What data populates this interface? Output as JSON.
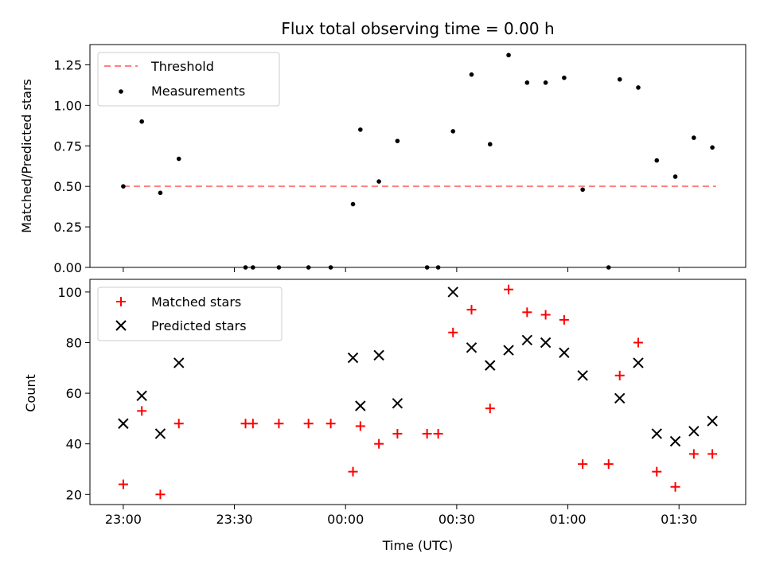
{
  "chart_data": [
    {
      "type": "scatter",
      "title": "Flux total observing time = 0.00 h",
      "xlabel": "",
      "ylabel": "Matched/Predicted stars",
      "ylim": [
        0,
        1.375
      ],
      "yticks": [
        "0.00",
        "0.25",
        "0.50",
        "0.75",
        "1.00",
        "1.25"
      ],
      "legend_position": "top-left",
      "threshold": {
        "name": "Threshold",
        "value": 0.5,
        "color": "#ff7f7f",
        "x_range": [
          "23:00",
          "01:40"
        ]
      },
      "series": [
        {
          "name": "Measurements",
          "color": "#000000",
          "x": [
            "23:00",
            "23:05",
            "23:10",
            "23:15",
            "23:33",
            "23:35",
            "23:42",
            "23:50",
            "23:56",
            "00:02",
            "00:04",
            "00:09",
            "00:14",
            "00:22",
            "00:25",
            "00:29",
            "00:34",
            "00:39",
            "00:44",
            "00:49",
            "00:54",
            "00:59",
            "01:04",
            "01:11",
            "01:14",
            "01:19",
            "01:24",
            "01:29",
            "01:34",
            "01:39"
          ],
          "values": [
            0.5,
            0.9,
            0.46,
            0.67,
            0.0,
            0.0,
            0.0,
            0.0,
            0.0,
            0.39,
            0.85,
            0.53,
            0.78,
            0.0,
            0.0,
            0.84,
            1.19,
            0.76,
            1.31,
            1.14,
            1.14,
            1.17,
            0.48,
            0.0,
            1.16,
            1.11,
            0.66,
            0.56,
            0.8,
            0.74
          ]
        }
      ]
    },
    {
      "type": "scatter",
      "title": "",
      "xlabel": "Time (UTC)",
      "ylabel": "Count",
      "ylim": [
        16,
        105
      ],
      "yticks": [
        "20",
        "40",
        "60",
        "80",
        "100"
      ],
      "xlim": [
        "22:51",
        "01:48"
      ],
      "xticks": [
        "23:00",
        "23:30",
        "00:00",
        "00:30",
        "01:00",
        "01:30"
      ],
      "legend_position": "top-left",
      "series": [
        {
          "name": "Matched stars",
          "color": "#ff0000",
          "marker": "plus",
          "x": [
            "23:00",
            "23:05",
            "23:10",
            "23:15",
            "23:33",
            "23:35",
            "23:42",
            "23:50",
            "23:56",
            "00:02",
            "00:04",
            "00:09",
            "00:14",
            "00:22",
            "00:25",
            "00:29",
            "00:34",
            "00:39",
            "00:44",
            "00:49",
            "00:54",
            "00:59",
            "01:04",
            "01:11",
            "01:14",
            "01:19",
            "01:24",
            "01:29",
            "01:34",
            "01:39"
          ],
          "values": [
            24,
            53,
            20,
            48,
            48,
            48,
            48,
            48,
            48,
            29,
            47,
            40,
            44,
            44,
            44,
            84,
            93,
            54,
            101,
            92,
            91,
            89,
            32,
            32,
            67,
            80,
            29,
            23,
            36,
            36
          ]
        },
        {
          "name": "Predicted stars",
          "color": "#000000",
          "marker": "x",
          "x": [
            "23:00",
            "23:05",
            "23:10",
            "23:15",
            "00:02",
            "00:04",
            "00:09",
            "00:14",
            "00:29",
            "00:34",
            "00:39",
            "00:44",
            "00:49",
            "00:54",
            "00:59",
            "01:04",
            "01:14",
            "01:19",
            "01:24",
            "01:29",
            "01:34",
            "01:39"
          ],
          "values": [
            48,
            59,
            44,
            72,
            74,
            55,
            75,
            56,
            100,
            78,
            71,
            77,
            81,
            80,
            76,
            67,
            58,
            72,
            44,
            41,
            45,
            49
          ]
        }
      ]
    }
  ]
}
